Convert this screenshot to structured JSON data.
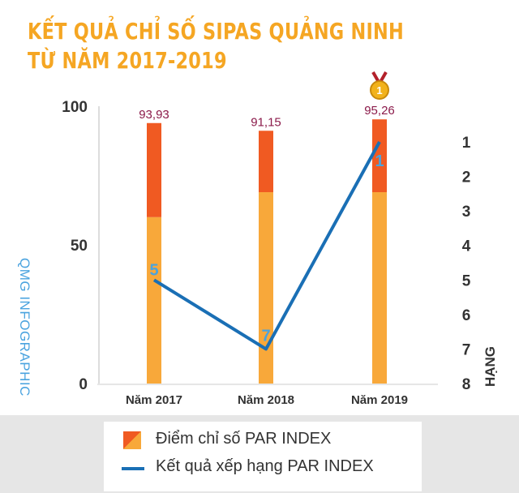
{
  "title_lines": [
    "KẾT QUẢ CHỈ SỐ SIPAS QUẢNG NINH",
    "TỪ NĂM 2017-2019"
  ],
  "watermark": "QMG INFOGRAPHIC",
  "colors": {
    "title": "#f5a623",
    "bar_base": "#f8a83a",
    "bar_top": "#f05a22",
    "line": "#1a6fb5",
    "rank_label": "#4aa3df",
    "value_label": "#8b1a4a"
  },
  "chart_data": {
    "type": "bar",
    "categories": [
      "Năm 2017",
      "Năm 2018",
      "Năm 2019"
    ],
    "series": [
      {
        "name": "Điểm chỉ số PAR INDEX",
        "values": [
          93.93,
          91.15,
          95.26
        ],
        "value_labels": [
          "93,93",
          "91,15",
          "95,26"
        ],
        "base_segment_values": [
          60,
          69,
          69
        ]
      },
      {
        "name": "Kết quả xếp hạng PAR INDEX",
        "type": "line",
        "axis": "right",
        "values": [
          5,
          7,
          1
        ],
        "value_labels": [
          "5",
          "7",
          "1"
        ]
      }
    ],
    "y_left": {
      "ylim": [
        0,
        100
      ],
      "ticks": [
        0,
        50,
        100
      ],
      "tick_labels": [
        "0",
        "50",
        "100"
      ]
    },
    "y_right": {
      "ylim": [
        1,
        8
      ],
      "inverted": true,
      "label": "HẠNG",
      "ticks": [
        1,
        2,
        3,
        4,
        5,
        6,
        7,
        8
      ],
      "tick_labels": [
        "1",
        "2",
        "3",
        "4",
        "5",
        "6",
        "7",
        "8"
      ]
    },
    "grid": false,
    "legend": "bottom",
    "annotation": "medal-icon above Năm 2019"
  },
  "legend": {
    "items": [
      "Điểm chỉ số PAR INDEX",
      "Kết quả xếp hạng PAR INDEX"
    ]
  },
  "medal": {
    "label": "1"
  }
}
